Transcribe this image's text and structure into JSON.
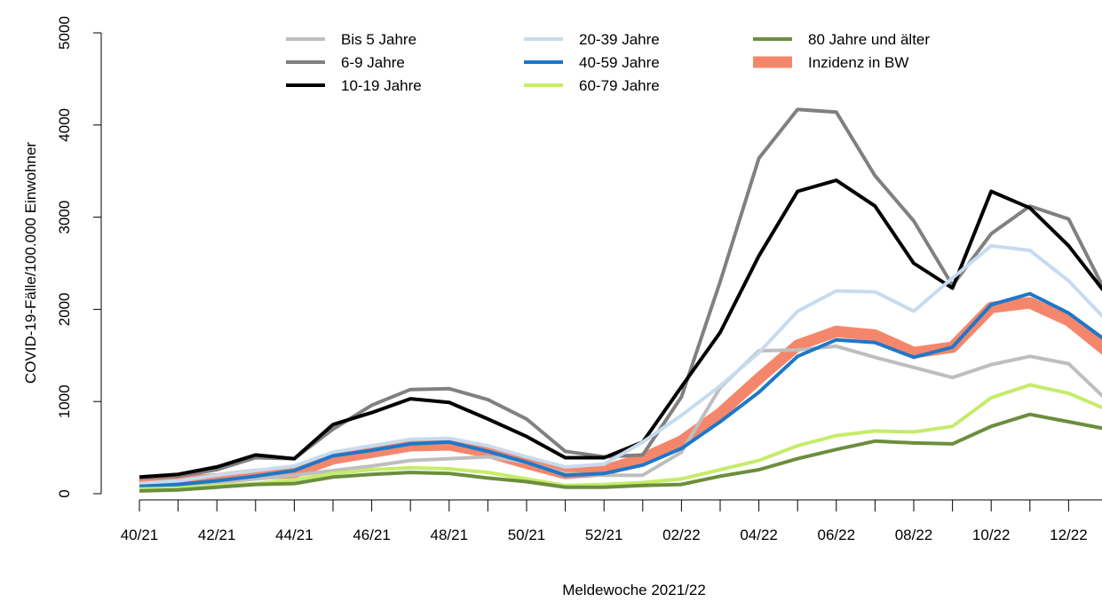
{
  "chart_data": {
    "type": "line",
    "title": "",
    "xlabel": "Meldewoche 2021/22",
    "ylabel": "COVID-19-Fälle/100.000 Einwohner",
    "ylim": [
      0,
      5000
    ],
    "yticks": [
      "0",
      "1000",
      "2000",
      "3000",
      "4000",
      "5000"
    ],
    "grid": false,
    "legend_position": "top",
    "x": [
      "40/21",
      "41/21",
      "42/21",
      "43/21",
      "44/21",
      "45/21",
      "46/21",
      "47/21",
      "48/21",
      "49/21",
      "50/21",
      "51/21",
      "52/21",
      "01/22",
      "02/22",
      "03/22",
      "04/22",
      "05/22",
      "06/22",
      "07/22",
      "08/22",
      "09/22",
      "10/22",
      "11/22",
      "12/22",
      "13/22"
    ],
    "x_tick_labels": [
      "40/21",
      "42/21",
      "44/21",
      "46/21",
      "48/21",
      "50/21",
      "52/21",
      "02/22",
      "04/22",
      "06/22",
      "08/22",
      "10/22",
      "12/22"
    ],
    "series": [
      {
        "name": "Bis 5 Jahre",
        "color": "#bebebe",
        "width": 4,
        "values": [
          80,
          90,
          120,
          160,
          200,
          250,
          300,
          360,
          380,
          400,
          340,
          220,
          200,
          200,
          450,
          1150,
          1550,
          1560,
          1600,
          1480,
          1370,
          1260,
          1400,
          1490,
          1410,
          1010
        ]
      },
      {
        "name": "6-9 Jahre",
        "color": "#808080",
        "width": 4,
        "values": [
          170,
          190,
          260,
          390,
          380,
          700,
          960,
          1130,
          1140,
          1020,
          810,
          460,
          400,
          420,
          1050,
          2300,
          3640,
          4170,
          4140,
          3450,
          2960,
          2260,
          2820,
          3120,
          2980,
          2150
        ]
      },
      {
        "name": "10-19 Jahre",
        "color": "#000000",
        "width": 4,
        "values": [
          180,
          210,
          290,
          420,
          380,
          750,
          880,
          1030,
          990,
          810,
          620,
          390,
          390,
          560,
          1160,
          1750,
          2580,
          3280,
          3400,
          3120,
          2500,
          2230,
          3280,
          3100,
          2690,
          2150
        ]
      },
      {
        "name": "20-39 Jahre",
        "color": "#c6dbef",
        "width": 4,
        "values": [
          110,
          140,
          200,
          250,
          300,
          450,
          520,
          590,
          600,
          520,
          400,
          290,
          320,
          560,
          850,
          1170,
          1530,
          1980,
          2200,
          2190,
          1980,
          2340,
          2690,
          2640,
          2310,
          1870
        ]
      },
      {
        "name": "40-59 Jahre",
        "color": "#1f77c9",
        "width": 4,
        "values": [
          80,
          100,
          140,
          190,
          250,
          410,
          470,
          540,
          560,
          460,
          340,
          200,
          220,
          310,
          490,
          780,
          1100,
          1490,
          1670,
          1640,
          1480,
          1590,
          2050,
          2170,
          1960,
          1650
        ]
      },
      {
        "name": "60-79 Jahre",
        "color": "#c5ec6a",
        "width": 4,
        "values": [
          50,
          60,
          90,
          110,
          150,
          220,
          260,
          280,
          270,
          230,
          160,
          90,
          100,
          120,
          160,
          260,
          360,
          520,
          630,
          680,
          670,
          730,
          1040,
          1180,
          1090,
          910
        ]
      },
      {
        "name": "80 Jahre und älter",
        "color": "#6b8e3d",
        "width": 4,
        "values": [
          30,
          40,
          70,
          100,
          110,
          180,
          210,
          230,
          220,
          170,
          130,
          70,
          70,
          90,
          100,
          190,
          260,
          380,
          480,
          570,
          550,
          540,
          730,
          860,
          780,
          700
        ]
      },
      {
        "name": "Inzidenz in BW",
        "color": "#f4876b",
        "width": 13,
        "values": [
          90,
          130,
          160,
          210,
          230,
          380,
          450,
          520,
          530,
          450,
          330,
          220,
          250,
          380,
          570,
          870,
          1250,
          1610,
          1760,
          1720,
          1530,
          1590,
          2020,
          2070,
          1880,
          1540
        ]
      }
    ]
  }
}
